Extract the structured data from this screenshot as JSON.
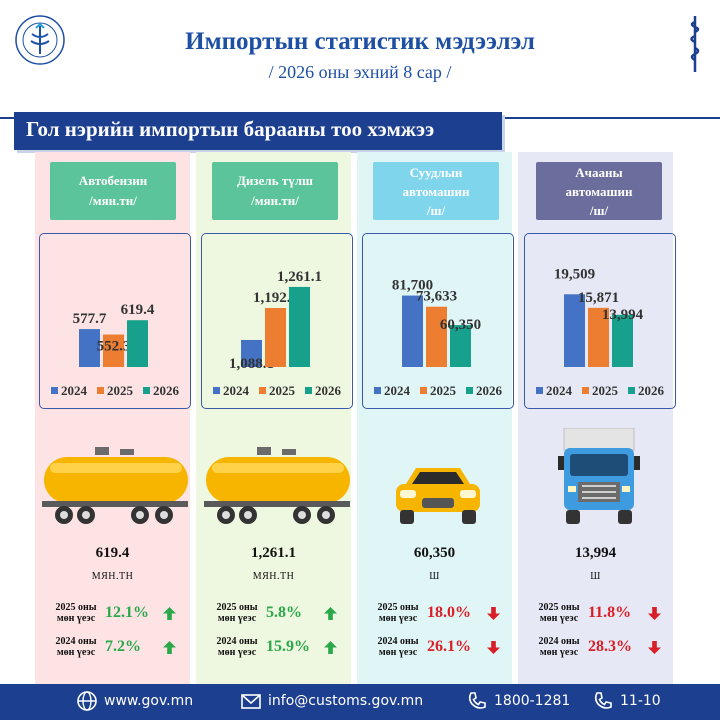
{
  "header": {
    "title": "Импортын статистик мэдээлэл",
    "subtitle": "/ 2026 оны эхний 8 сар /"
  },
  "section_title": "Гол нэрийн импортын барааны тоо хэмжээ",
  "colors": {
    "navy": "#1d3f8f",
    "series_2024": "#4472c4",
    "series_2025": "#ed7d31",
    "series_2026": "#17a08b",
    "up": "#2aa84a",
    "down": "#d81f26"
  },
  "chart_data": [
    {
      "type": "bar",
      "title": "Автобензин /мян.тн/",
      "categories": [
        "2024",
        "2025",
        "2026"
      ],
      "values": [
        577.7,
        552.3,
        619.4
      ],
      "value_labels": [
        "577.7",
        "552.3",
        "619.4"
      ],
      "legend": "bottom"
    },
    {
      "type": "bar",
      "title": "Дизель түлш /мян.тн/",
      "categories": [
        "2024",
        "2025",
        "2026"
      ],
      "values": [
        1088.1,
        1192.4,
        1261.1
      ],
      "value_labels": [
        "1,088.1",
        "1,192.4",
        "1,261.1"
      ],
      "legend": "bottom"
    },
    {
      "type": "bar",
      "title": "Суудлын автомашин /ш/",
      "categories": [
        "2024",
        "2025",
        "2026"
      ],
      "values": [
        81700,
        73633,
        60350
      ],
      "value_labels": [
        "81,700",
        "73,633",
        "60,350"
      ],
      "legend": "bottom"
    },
    {
      "type": "bar",
      "title": "Ачааны автомашин /ш/",
      "categories": [
        "2024",
        "2025",
        "2026"
      ],
      "values": [
        19509,
        15871,
        13994
      ],
      "value_labels": [
        "19,509",
        "15,871",
        "13,994"
      ],
      "legend": "bottom"
    }
  ],
  "columns": [
    {
      "cat_line1": "Автобензин",
      "cat_line2": "/мян.тн/",
      "cat_line3": "",
      "value": "619.4",
      "unit": "МЯН.ТН",
      "cmp": [
        {
          "label1": "2025 оны",
          "label2": "мөн үеэс",
          "pct": "12.1%",
          "dir": "up"
        },
        {
          "label1": "2024 оны",
          "label2": "мөн үеэс",
          "pct": "7.2%",
          "dir": "up"
        }
      ]
    },
    {
      "cat_line1": "Дизель түлш",
      "cat_line2": "/мян.тн/",
      "cat_line3": "",
      "value": "1,261.1",
      "unit": "МЯН.ТН",
      "cmp": [
        {
          "label1": "2025 оны",
          "label2": "мөн үеэс",
          "pct": "5.8%",
          "dir": "up"
        },
        {
          "label1": "2024 оны",
          "label2": "мөн үеэс",
          "pct": "15.9%",
          "dir": "up"
        }
      ]
    },
    {
      "cat_line1": "Суудлын",
      "cat_line2": "автомашин",
      "cat_line3": "/ш/",
      "value": "60,350",
      "unit": "Ш",
      "cmp": [
        {
          "label1": "2025 оны",
          "label2": "мөн үеэс",
          "pct": "18.0%",
          "dir": "down"
        },
        {
          "label1": "2024 оны",
          "label2": "мөн үеэс",
          "pct": "26.1%",
          "dir": "down"
        }
      ]
    },
    {
      "cat_line1": "Ачааны",
      "cat_line2": "автомашин",
      "cat_line3": "/ш/",
      "value": "13,994",
      "unit": "Ш",
      "cmp": [
        {
          "label1": "2025 оны",
          "label2": "мөн үеэс",
          "pct": "11.8%",
          "dir": "down"
        },
        {
          "label1": "2024 оны",
          "label2": "мөн үеэс",
          "pct": "28.3%",
          "dir": "down"
        }
      ]
    }
  ],
  "footer": {
    "website": "www.gov.mn",
    "email": "info@customs.gov.mn",
    "phone1": "1800-1281",
    "phone2": "11-10"
  },
  "icons": {
    "logo": "customs-emblem-icon",
    "script": "mongolian-script-icon",
    "globe": "globe-icon",
    "mail": "mail-icon",
    "phone": "phone-icon",
    "tanker": "fuel-tanker-icon",
    "car": "car-icon",
    "truck": "truck-icon",
    "up_arrow": "arrow-up-icon",
    "down_arrow": "arrow-down-icon"
  }
}
